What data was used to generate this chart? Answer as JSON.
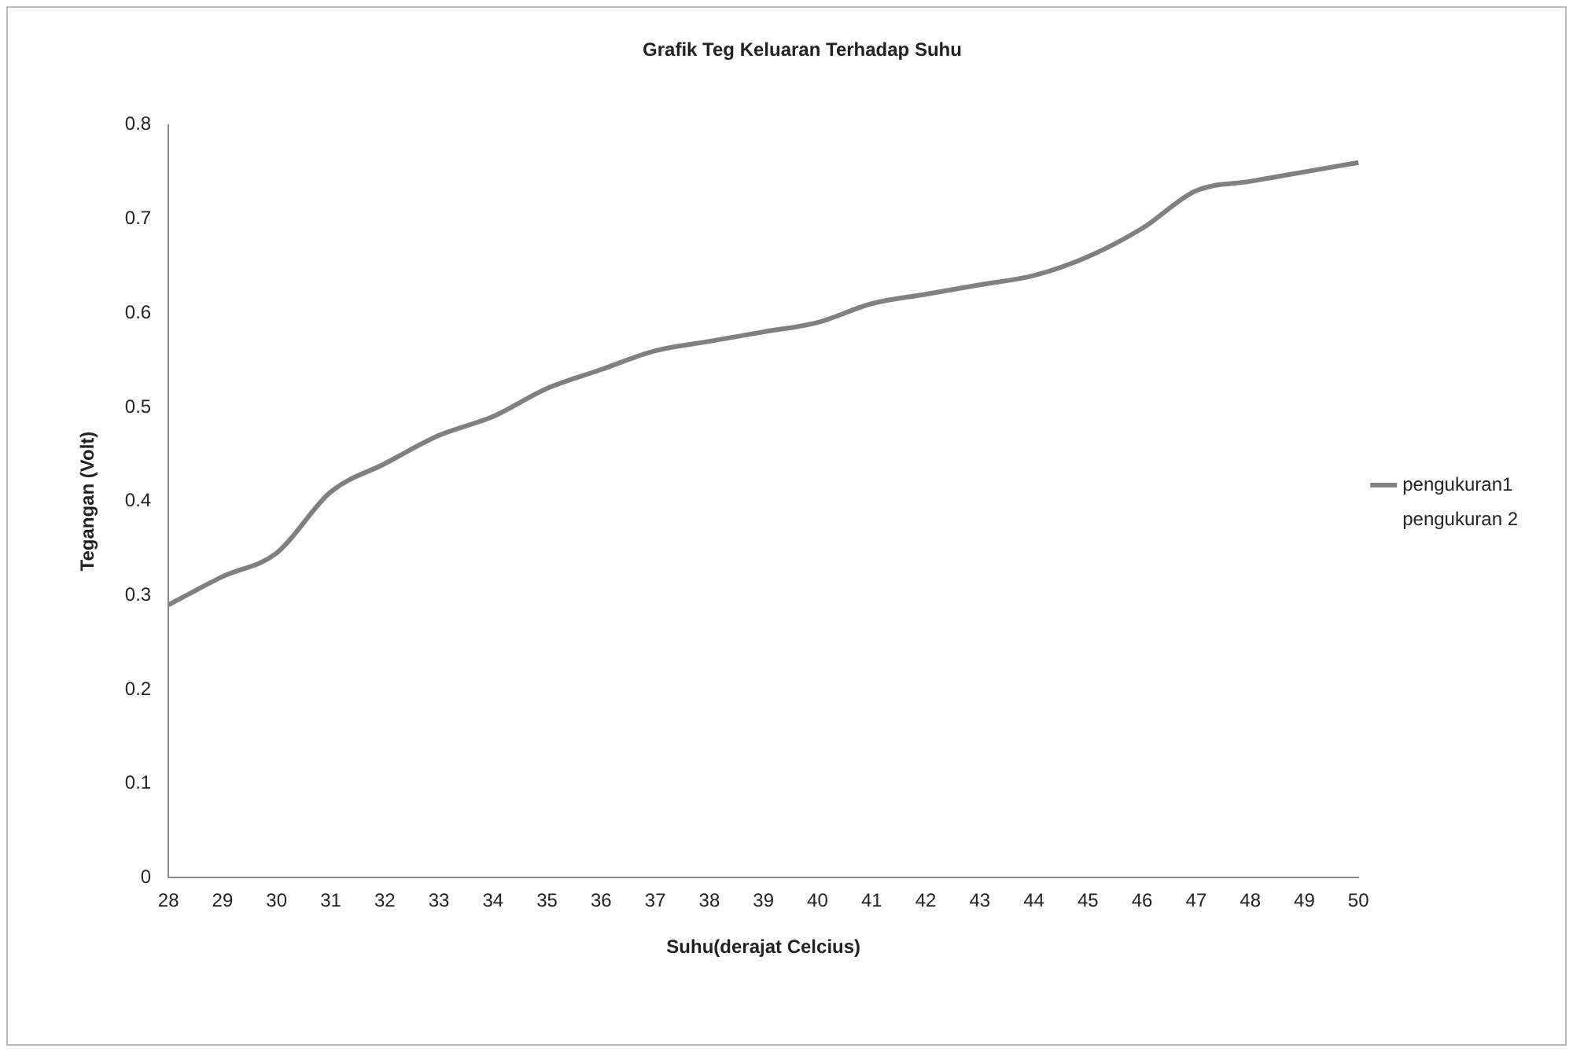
{
  "chart_data": {
    "type": "line",
    "title": "Grafik Teg Keluaran Terhadap Suhu",
    "xlabel": "Suhu(derajat Celcius)",
    "ylabel": "Tegangan (Volt)",
    "categories": [
      "28",
      "29",
      "30",
      "31",
      "32",
      "33",
      "34",
      "35",
      "36",
      "37",
      "38",
      "39",
      "40",
      "41",
      "42",
      "43",
      "44",
      "45",
      "46",
      "47",
      "48",
      "49",
      "50"
    ],
    "series": [
      {
        "name": "pengukuran1",
        "color": "#808080",
        "values": [
          0.29,
          0.32,
          0.345,
          0.41,
          0.44,
          0.47,
          0.49,
          0.52,
          0.54,
          0.56,
          0.57,
          0.58,
          0.59,
          0.61,
          0.62,
          0.63,
          0.64,
          0.66,
          0.69,
          0.73,
          0.74,
          0.75,
          0.76
        ]
      },
      {
        "name": "pengukuran 2",
        "values": [
          null,
          null,
          null,
          null,
          null,
          null,
          null,
          null,
          null,
          null,
          null,
          null,
          null,
          null,
          null,
          null,
          null,
          null,
          null,
          null,
          null,
          null,
          null
        ]
      }
    ],
    "ylim": [
      0,
      0.8
    ],
    "yticks": [
      0,
      0.1,
      0.2,
      0.3,
      0.4,
      0.5,
      0.6,
      0.7,
      0.8
    ],
    "grid": false,
    "legend": "right",
    "marker": "none",
    "line_style": "solid"
  }
}
